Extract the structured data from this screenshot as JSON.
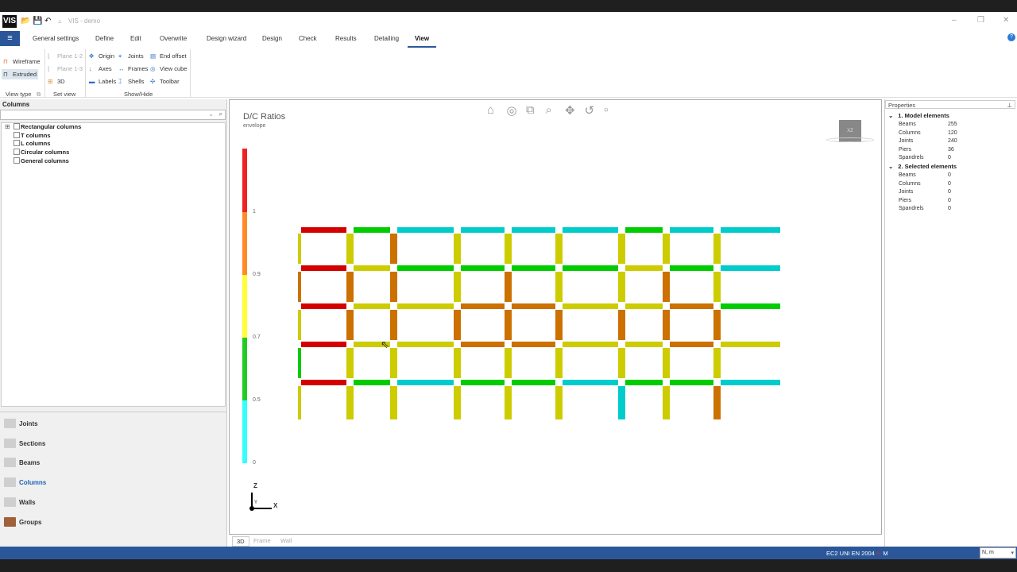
{
  "app": {
    "title": "VIS - demo",
    "logo": "VIS"
  },
  "quick_access": [
    "folder-open-icon",
    "save-icon",
    "undo-icon"
  ],
  "tabs": [
    "General settings",
    "Define",
    "Edit",
    "Overwrite",
    "Design wizard",
    "Design",
    "Check",
    "Results",
    "Detailing",
    "View"
  ],
  "active_tab": "View",
  "ribbon": {
    "view_type": {
      "label": "View type",
      "items": [
        "Wireframe",
        "Extruded"
      ],
      "selected": "Extruded"
    },
    "set_view": {
      "label": "Set view",
      "items": [
        "Plane 1-2",
        "Plane 1-3",
        "3D"
      ]
    },
    "show_hide": {
      "label": "Show/Hide",
      "items": [
        "Origin",
        "Axes",
        "Labels",
        "Joints",
        "Frames",
        "Shells",
        "End offset",
        "View cube",
        "Toolbar"
      ]
    }
  },
  "left_panel": {
    "title": "Columns",
    "search_placeholder": "",
    "tree": [
      "Rectangular columns",
      "T columns",
      "L columns",
      "Circular columns",
      "General columns"
    ],
    "nav": [
      "Joints",
      "Sections",
      "Beams",
      "Columns",
      "Walls",
      "Groups"
    ],
    "active_nav": "Columns"
  },
  "viewport": {
    "title": "D/C Ratios",
    "subtitle": "envelope",
    "tools": [
      "home-icon",
      "orbit-icon",
      "zoom-window-icon",
      "zoom-icon",
      "pan-icon",
      "rotate-icon",
      "layout-icon"
    ],
    "cube_label": "XZ",
    "axes": {
      "x": "X",
      "y": "Y",
      "z": "Z"
    },
    "view_tabs": [
      "3D",
      "Frame",
      "Wall"
    ],
    "active_view_tab": "3D"
  },
  "legend": {
    "labels": [
      "1",
      "0.9",
      "0.7",
      "0.5",
      "0"
    ],
    "colors": {
      "over": "#ee2222",
      "l4": "#ff8a2a",
      "l3": "#ffff33",
      "l2": "#22cc22",
      "l1": "#33ffff"
    }
  },
  "frame": {
    "colors": {
      "R": "#d40000",
      "O": "#cc7000",
      "Y": "#cccc00",
      "G": "#00cc00",
      "C": "#00cccc"
    },
    "beams": [
      [
        "R",
        "G",
        "C",
        "C",
        "C",
        "C",
        "G",
        "C",
        "C"
      ],
      [
        "R",
        "Y",
        "G",
        "G",
        "G",
        "G",
        "Y",
        "G",
        "C"
      ],
      [
        "R",
        "Y",
        "Y",
        "O",
        "O",
        "Y",
        "Y",
        "O",
        "G"
      ],
      [
        "R",
        "Y",
        "Y",
        "O",
        "O",
        "Y",
        "Y",
        "O",
        "Y"
      ],
      [
        "R",
        "G",
        "C",
        "G",
        "G",
        "C",
        "G",
        "G",
        "C"
      ]
    ],
    "columns": [
      [
        "Y",
        "Y",
        "O",
        "Y",
        "Y",
        "Y",
        "Y",
        "Y",
        "Y"
      ],
      [
        "O",
        "O",
        "O",
        "Y",
        "O",
        "Y",
        "Y",
        "O",
        "Y"
      ],
      [
        "Y",
        "O",
        "O",
        "O",
        "O",
        "O",
        "O",
        "O",
        "O"
      ],
      [
        "G",
        "Y",
        "Y",
        "Y",
        "Y",
        "Y",
        "Y",
        "Y",
        "Y"
      ],
      [
        "Y",
        "Y",
        "Y",
        "Y",
        "Y",
        "Y",
        "C",
        "Y",
        "O"
      ]
    ]
  },
  "properties": {
    "title": "Properties",
    "sections": [
      {
        "title": "1. Model elements",
        "rows": [
          [
            "Beams",
            "255"
          ],
          [
            "Columns",
            "120"
          ],
          [
            "Joints",
            "240"
          ],
          [
            "Piers",
            "36"
          ],
          [
            "Spandrels",
            "0"
          ]
        ]
      },
      {
        "title": "2. Selected elements",
        "rows": [
          [
            "Beams",
            "0"
          ],
          [
            "Columns",
            "0"
          ],
          [
            "Joints",
            "0"
          ],
          [
            "Piers",
            "0"
          ],
          [
            "Spandrels",
            "0"
          ]
        ]
      }
    ]
  },
  "status": {
    "standard": "EC2 UNI EN 2004",
    "mode": "M",
    "units": "N, m"
  }
}
